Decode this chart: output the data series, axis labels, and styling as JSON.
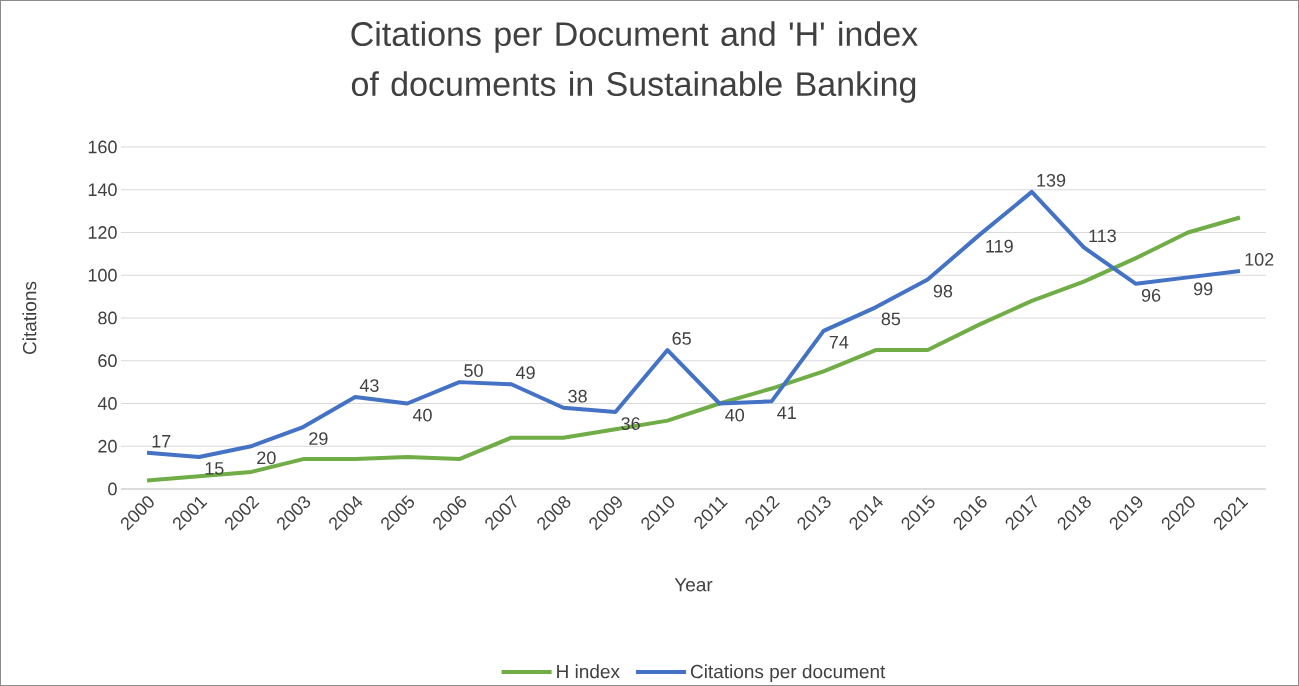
{
  "chart_data": {
    "type": "line",
    "title": "Citations per Document and 'H' index of documents in Sustainable Banking",
    "xlabel": "Year",
    "ylabel": "Citations",
    "categories": [
      "2000",
      "2001",
      "2002",
      "2003",
      "2004",
      "2005",
      "2006",
      "2007",
      "2008",
      "2009",
      "2010",
      "2011",
      "2012",
      "2013",
      "2014",
      "2015",
      "2016",
      "2017",
      "2018",
      "2019",
      "2020",
      "2021"
    ],
    "series": [
      {
        "name": "H index",
        "color": "#70ad47",
        "values": [
          4,
          6,
          8,
          14,
          14,
          15,
          14,
          24,
          24,
          28,
          32,
          40,
          47,
          55,
          65,
          65,
          77,
          88,
          97,
          108,
          120,
          127
        ]
      },
      {
        "name": "Citations per document",
        "color": "#4472c4",
        "values": [
          17,
          15,
          20,
          29,
          43,
          40,
          50,
          49,
          38,
          36,
          65,
          40,
          41,
          74,
          85,
          98,
          119,
          139,
          113,
          96,
          99,
          102
        ],
        "value_labels": [
          "17",
          "15",
          "20",
          "29",
          "43",
          "40",
          "50",
          "49",
          "38",
          "36",
          "65",
          "40",
          "41",
          "74",
          "85",
          "98",
          "119",
          "139",
          "113",
          "96",
          "99",
          "102"
        ]
      }
    ],
    "ylim": [
      0,
      160
    ],
    "yticks": [
      0,
      20,
      40,
      60,
      80,
      100,
      120,
      140,
      160
    ],
    "grid": "y",
    "legend": "bottom",
    "line_style": "solid"
  }
}
